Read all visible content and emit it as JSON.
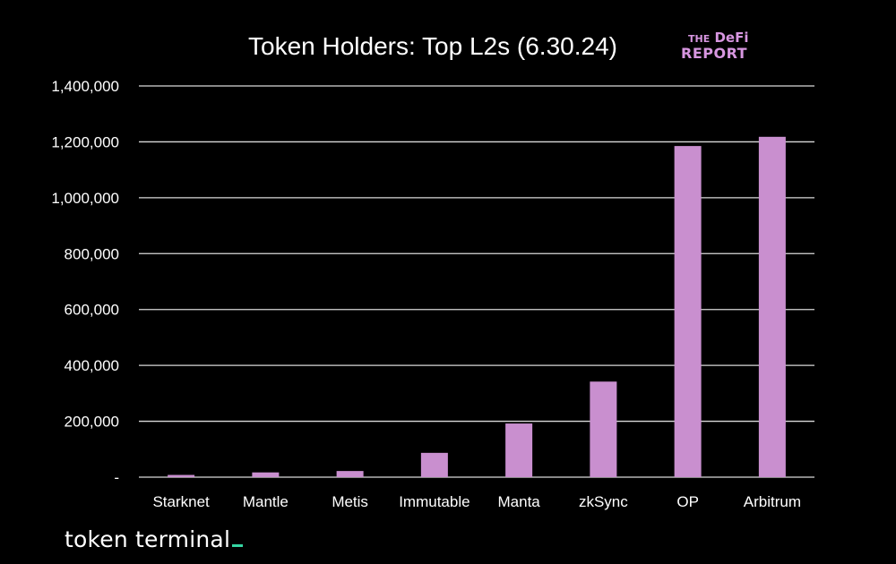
{
  "branding": {
    "report_logo_line1_small": "THE",
    "report_logo_line1": "DeFi",
    "report_logo_line2": "REPORT",
    "footer_logo": "token terminal"
  },
  "colors": {
    "background": "#000000",
    "bar": "#c98fcf",
    "grid": "#d9d9d9",
    "text": "#ffffff",
    "defi_logo": "#d796e0",
    "footer_accent": "#35d6a3"
  },
  "chart_data": {
    "type": "bar",
    "title": "Token Holders: Top L2s (6.30.24)",
    "xlabel": "",
    "ylabel": "",
    "categories": [
      "Starknet",
      "Mantle",
      "Metis",
      "Immutable",
      "Manta",
      "zkSync",
      "OP",
      "Arbitrum"
    ],
    "values": [
      8000,
      17000,
      22000,
      87000,
      192000,
      342000,
      1185000,
      1218000
    ],
    "ylim": [
      0,
      1400000
    ],
    "yticks": [
      0,
      200000,
      400000,
      600000,
      800000,
      1000000,
      1200000,
      1400000
    ],
    "ytick_labels": [
      "-",
      "200,000",
      "400,000",
      "600,000",
      "800,000",
      "1,000,000",
      "1,200,000",
      "1,400,000"
    ],
    "grid": true,
    "legend": "none"
  }
}
